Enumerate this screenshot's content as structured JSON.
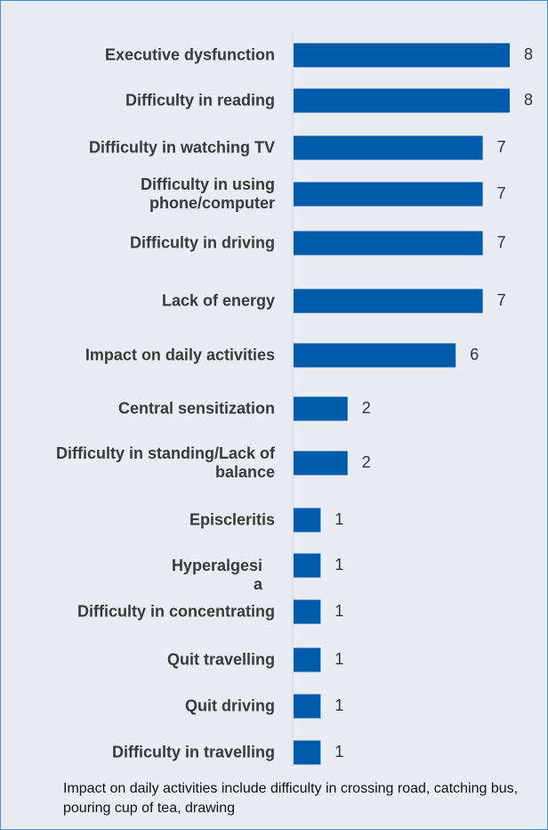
{
  "chart_data": {
    "type": "bar",
    "orientation": "horizontal",
    "categories": [
      "Executive dysfunction",
      "Difficulty in reading",
      "Difficulty in watching TV",
      "Difficulty in using\nphone/computer",
      "Difficulty in driving",
      "Lack of energy",
      "Impact on daily activities",
      "Central sensitization",
      "Difficulty in standing/Lack of\nbalance",
      "Episcleritis",
      "Hyperalgesi\na",
      "Difficulty in concentrating",
      "Quit travelling",
      "Quit driving",
      "Difficulty in travelling"
    ],
    "values": [
      8,
      8,
      7,
      7,
      7,
      7,
      6,
      2,
      2,
      1,
      1,
      1,
      1,
      1,
      1
    ],
    "color": "#005bab",
    "xlim": [
      0,
      8
    ],
    "note": "Impact on daily activities include difficulty in crossing road, catching bus, pouring cup of tea,  drawing"
  }
}
